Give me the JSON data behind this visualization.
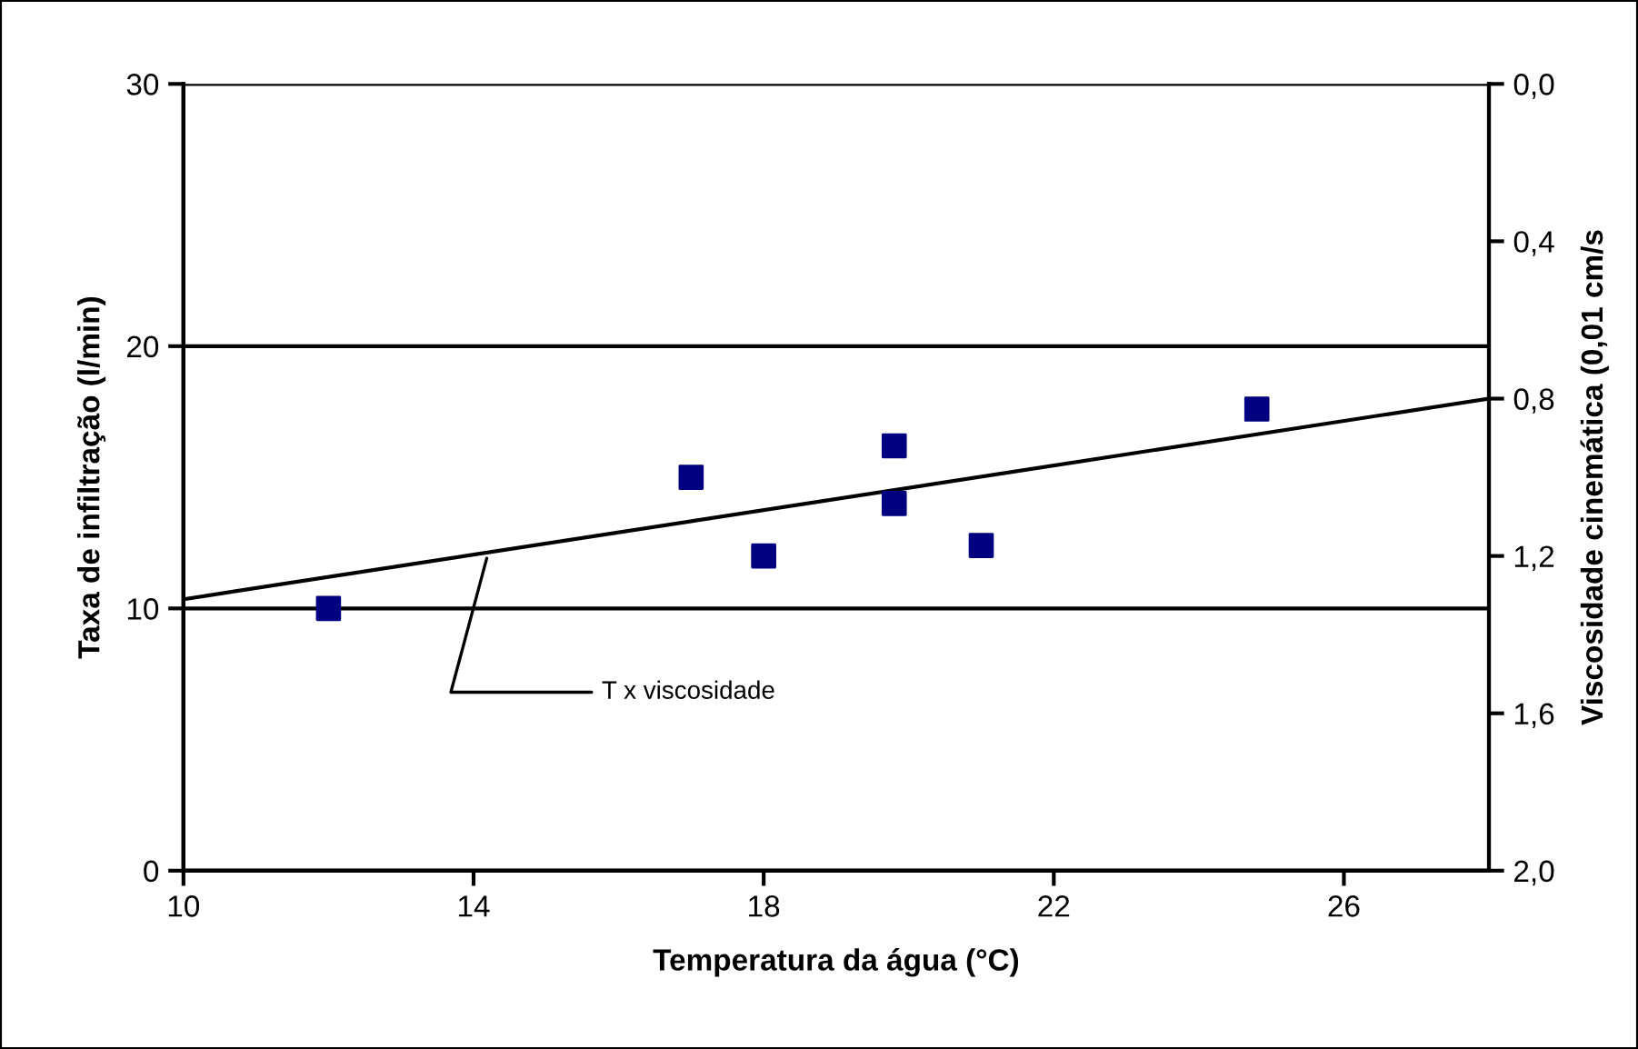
{
  "chart_data": {
    "type": "scatter",
    "xlabel": "Temperatura da água (°C)",
    "ylabel": "Taxa de infiltração (l/min)",
    "y2label": "Viscosidade cinemática (0,01 cm/s",
    "series": [
      {
        "color": "#000080",
        "marker": "square",
        "x": [
          12,
          17,
          18,
          19.8,
          19.8,
          21,
          24.8
        ],
        "values": [
          10,
          15,
          12,
          16.2,
          14,
          12.4,
          17.6
        ]
      },
      {
        "type": "line",
        "axis": "y2",
        "color": "#000000",
        "marker": "none",
        "line_style": "solid",
        "x": [
          10,
          28
        ],
        "values": [
          1.31,
          0.8
        ]
      }
    ],
    "annotations": [
      {
        "text": "T x viscosidade",
        "x": 14.2,
        "y": 12.1
      }
    ],
    "xlim": [
      10,
      28
    ],
    "xticks": [
      10,
      14,
      18,
      22,
      26
    ],
    "ylim": [
      0,
      30
    ],
    "yticks": [
      0,
      10,
      20,
      30
    ],
    "y2lim": [
      2.0,
      0.0
    ],
    "y2ticks": [
      {
        "value": 0,
        "label": "0,0"
      },
      {
        "value": 0.4,
        "label": "0,4"
      },
      {
        "value": 0.8,
        "label": "0,8"
      },
      {
        "value": 1.2,
        "label": "1,2"
      },
      {
        "value": 1.6,
        "label": "1,6"
      },
      {
        "value": 2.0,
        "label": "2,0"
      }
    ],
    "grid": "y",
    "legend": false
  }
}
